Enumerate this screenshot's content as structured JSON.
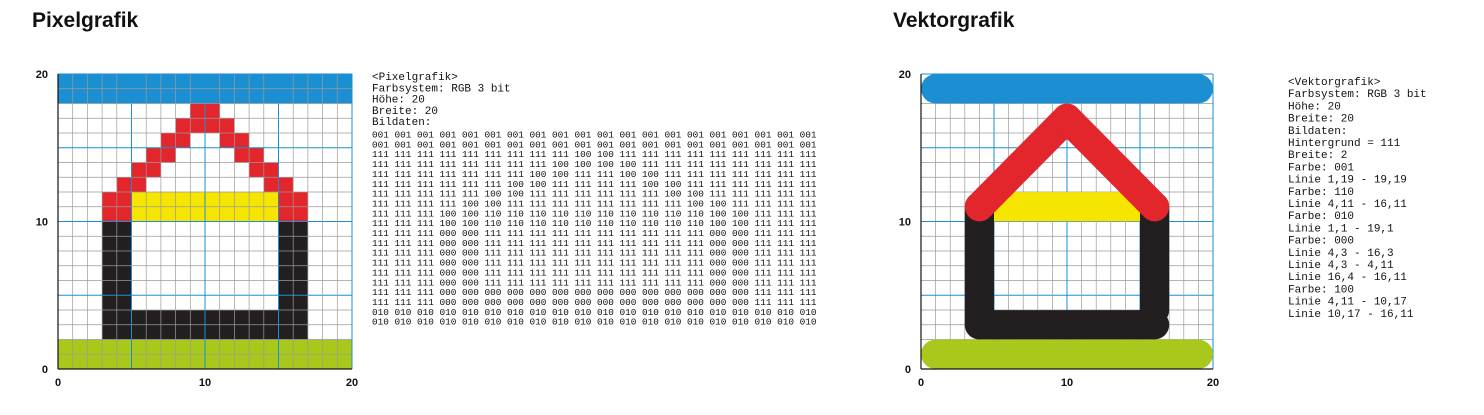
{
  "panels": [
    {
      "title": "Pixelgrafik",
      "xlim": [
        0,
        20
      ],
      "ylim": [
        0,
        20
      ],
      "xticks": [
        0,
        10,
        20
      ],
      "yticks": [
        0,
        10,
        20
      ],
      "header": [
        "<Pixelgrafik>",
        "Farbsystem: RGB 3 bit",
        "Höhe: 20",
        "Breite: 20",
        "Bildaten:"
      ],
      "bits": [
        "001 001 001 001 001 001 001 001 001 001 001 001 001 001 001 001 001 001 001 001",
        "001 001 001 001 001 001 001 001 001 001 001 001 001 001 001 001 001 001 001 001",
        "111 111 111 111 111 111 111 111 111 100 100 111 111 111 111 111 111 111 111 111",
        "111 111 111 111 111 111 111 111 100 100 100 100 111 111 111 111 111 111 111 111",
        "111 111 111 111 111 111 111 100 100 111 111 100 100 111 111 111 111 111 111 111",
        "111 111 111 111 111 111 100 100 111 111 111 111 100 100 111 111 111 111 111 111",
        "111 111 111 111 111 100 100 111 111 111 111 111 111 100 100 111 111 111 111 111",
        "111 111 111 111 100 100 111 111 111 111 111 111 111 111 100 100 111 111 111 111",
        "111 111 111 100 100 110 110 110 110 110 110 110 110 110 110 100 100 111 111 111",
        "111 111 111 100 100 110 110 110 110 110 110 110 110 110 110 100 100 111 111 111",
        "111 111 111 000 000 111 111 111 111 111 111 111 111 111 111 000 000 111 111 111",
        "111 111 111 000 000 111 111 111 111 111 111 111 111 111 111 000 000 111 111 111",
        "111 111 111 000 000 111 111 111 111 111 111 111 111 111 111 000 000 111 111 111",
        "111 111 111 000 000 111 111 111 111 111 111 111 111 111 111 000 000 111 111 111",
        "111 111 111 000 000 111 111 111 111 111 111 111 111 111 111 000 000 111 111 111",
        "111 111 111 000 000 111 111 111 111 111 111 111 111 111 111 000 000 111 111 111",
        "111 111 111 000 000 000 000 000 000 000 000 000 000 000 000 000 000 111 111 111",
        "111 111 111 000 000 000 000 000 000 000 000 000 000 000 000 000 000 111 111 111",
        "010 010 010 010 010 010 010 010 010 010 010 010 010 010 010 010 010 010 010 010",
        "010 010 010 010 010 010 010 010 010 010 010 010 010 010 010 010 010 010 010 010"
      ]
    },
    {
      "title": "Vektorgrafik",
      "xlim": [
        0,
        20
      ],
      "ylim": [
        0,
        20
      ],
      "xticks": [
        0,
        10,
        20
      ],
      "yticks": [
        0,
        10,
        20
      ],
      "header": [
        "<Vektorgrafik>",
        "Farbsystem: RGB 3 bit",
        "Höhe: 20",
        "Breite: 20",
        "Bildaten:",
        "Hintergrund = 111",
        "Breite: 2",
        "Farbe: 001",
        "Linie 1,19 - 19,19",
        "Farbe: 110",
        "Linie 4,11 - 16,11",
        "Farbe: 010",
        "Linie 1,1 - 19,1",
        "Farbe: 000",
        "Linie 4,3 - 16,3",
        "Linie 4,3 - 4,11",
        "Linie 16,4 - 16,11",
        "Farbe: 100",
        "Linie 4,11 - 10,17",
        "Linie 10,17 - 16,11"
      ]
    }
  ],
  "palette": {
    "001": "#1b8fd2",
    "100": "#e3262b",
    "110": "#f6e500",
    "010": "#a9c81c",
    "000": "#231f20",
    "111": "#ffffff"
  }
}
